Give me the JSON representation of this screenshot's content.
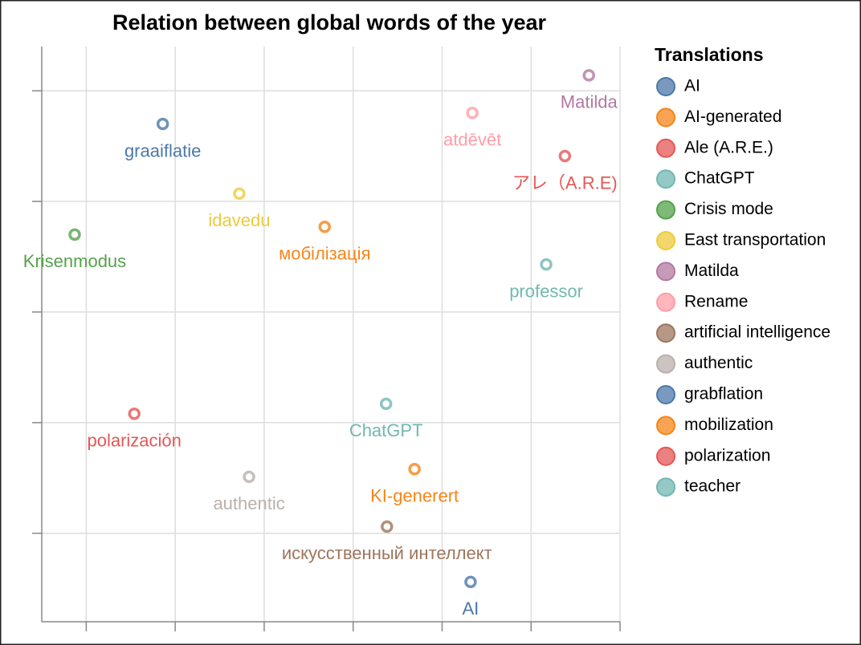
{
  "chart_data": {
    "type": "scatter",
    "title": "Relation between global words of the year",
    "legend_title": "Translations",
    "legend": "right",
    "grid": true,
    "xlim": [
      -3.5,
      3
    ],
    "xticks": [
      -3,
      -2,
      -1,
      0,
      1,
      2,
      3
    ],
    "ylim": [
      -2.8,
      2.4
    ],
    "yticks": [
      -2,
      -1,
      0,
      1,
      2
    ],
    "series": [
      {
        "name": "AI",
        "color": "#4c78a8",
        "label": "AI",
        "x": [
          1.32
        ],
        "values": [
          -2.44
        ]
      },
      {
        "name": "AI-generated",
        "color": "#f58518",
        "label": "KI-generert",
        "x": [
          0.69
        ],
        "values": [
          -1.42
        ]
      },
      {
        "name": "Ale (A.R.E.)",
        "color": "#e45756",
        "label": "アレ（A.R.E)",
        "x": [
          2.38
        ],
        "values": [
          1.41
        ]
      },
      {
        "name": "ChatGPT",
        "color": "#72b7b2",
        "label": "ChatGPT",
        "x": [
          0.37
        ],
        "values": [
          -0.83
        ]
      },
      {
        "name": "Crisis mode",
        "color": "#54a24b",
        "label": "Krisenmodus",
        "x": [
          -3.13
        ],
        "values": [
          0.7
        ]
      },
      {
        "name": "East transportation",
        "color": "#eeca3b",
        "label": "idavedu",
        "x": [
          -1.28
        ],
        "values": [
          1.07
        ]
      },
      {
        "name": "Matilda",
        "color": "#b279a2",
        "label": "Matilda",
        "x": [
          2.65
        ],
        "values": [
          2.14
        ]
      },
      {
        "name": "Rename",
        "color": "#ff9da6",
        "label": "atdēvēt",
        "x": [
          1.34
        ],
        "values": [
          1.8
        ]
      },
      {
        "name": "artificial intelligence",
        "color": "#9d755d",
        "label": "искусственный интеллект",
        "x": [
          0.38
        ],
        "values": [
          -1.94
        ]
      },
      {
        "name": "authentic",
        "color": "#bab0ac",
        "label": "authentic",
        "x": [
          -1.17
        ],
        "values": [
          -1.49
        ]
      },
      {
        "name": "grabflation",
        "color": "#4c78a8",
        "label": "graaiflatie",
        "x": [
          -2.14
        ],
        "values": [
          1.7
        ]
      },
      {
        "name": "mobilization",
        "color": "#f58518",
        "label": "мобілізація",
        "x": [
          -0.32
        ],
        "values": [
          0.77
        ]
      },
      {
        "name": "polarization",
        "color": "#e45756",
        "label": "polarización",
        "x": [
          -2.46
        ],
        "values": [
          -0.92
        ]
      },
      {
        "name": "teacher",
        "color": "#72b7b2",
        "label": "professor",
        "x": [
          2.17
        ],
        "values": [
          0.43
        ]
      }
    ]
  }
}
